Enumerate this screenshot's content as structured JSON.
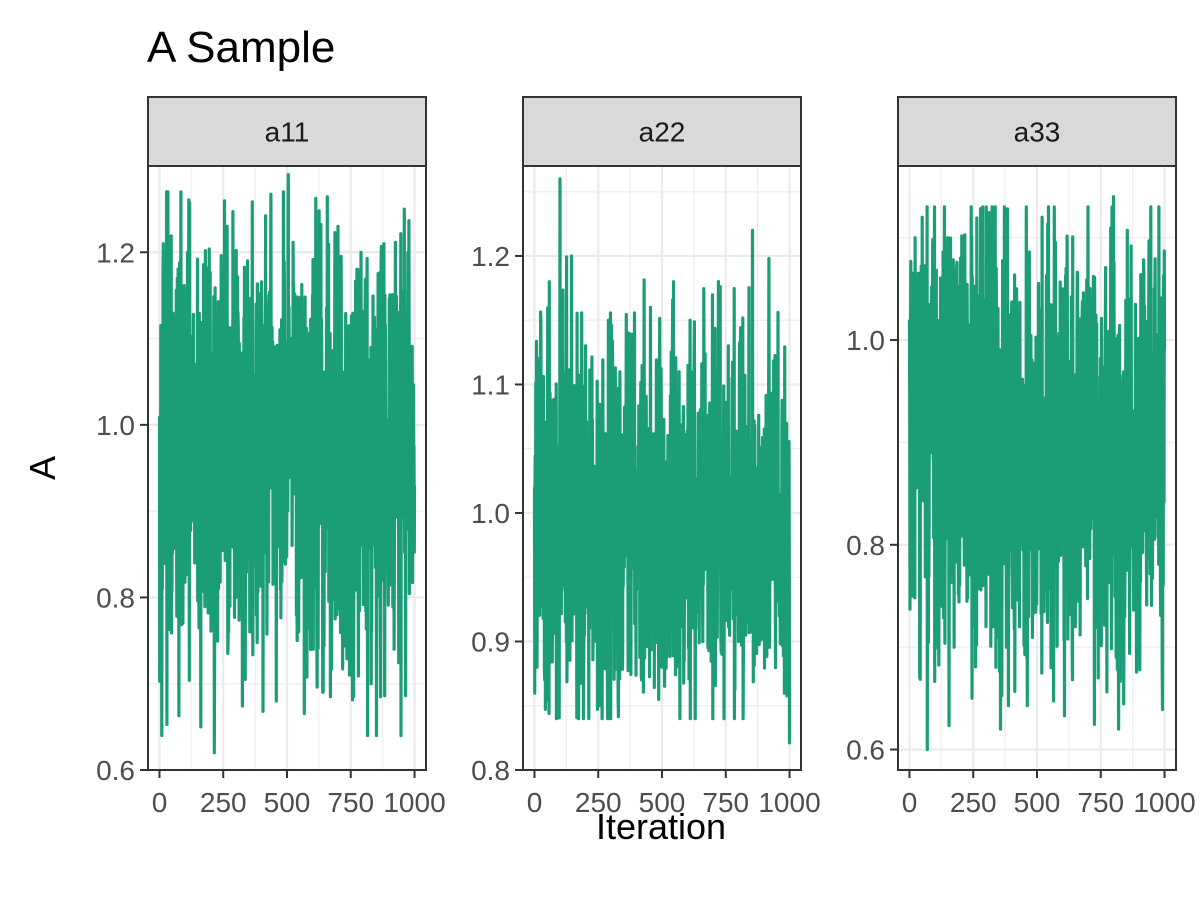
{
  "chart_data": {
    "type": "line",
    "title": "A Sample",
    "xlabel": "Iteration",
    "ylabel": "A",
    "grid": true,
    "legend": "none",
    "line_color": "#1b9e77",
    "strip_fill": "#d9d9d9",
    "panels": [
      {
        "label": "a11",
        "xlim": [
          0,
          1000
        ],
        "x_ticks": [
          "0",
          "250",
          "500",
          "750",
          "1000"
        ],
        "ylim": [
          0.6,
          1.3
        ],
        "y_ticks": [
          "0.6",
          "0.8",
          "1.0",
          "1.2"
        ],
        "summary": {
          "center": 0.97,
          "typical_low": 0.85,
          "typical_high": 1.09,
          "min": 0.62,
          "max": 1.29
        },
        "series": [
          {
            "x": [
              0,
              8,
              15,
              23,
              38,
              52,
              70,
              92,
              110,
              138,
              162,
              190,
              215,
              240,
              265,
              300,
              345,
              380,
              430,
              458,
              505,
              540,
              600,
              640,
              700,
              745,
              790,
              830,
              880,
              920,
              960,
              1000
            ],
            "y": [
              1.01,
              0.88,
              1.21,
              0.86,
              1.09,
              0.92,
              1.17,
              0.77,
              1.2,
              0.84,
              0.65,
              1.14,
              0.62,
              1.13,
              1.23,
              0.8,
              1.19,
              0.78,
              1.15,
              0.68,
              1.29,
              0.75,
              1.15,
              0.69,
              1.23,
              0.71,
              1.2,
              0.7,
              1.21,
              0.74,
              1.25,
              0.93
            ]
          }
        ]
      },
      {
        "label": "a22",
        "xlim": [
          0,
          1000
        ],
        "x_ticks": [
          "0",
          "250",
          "500",
          "750",
          "1000"
        ],
        "ylim": [
          0.8,
          1.27
        ],
        "y_ticks": [
          "0.8",
          "0.9",
          "1.0",
          "1.1",
          "1.2"
        ],
        "summary": {
          "center": 1.0,
          "typical_low": 0.93,
          "typical_high": 1.07,
          "min": 0.82,
          "max": 1.26
        },
        "series": [
          {
            "x": [
              0,
              10,
              25,
              40,
              58,
              75,
              100,
              125,
              145,
              175,
              200,
              230,
              255,
              290,
              330,
              370,
              420,
              455,
              500,
              545,
              570,
              610,
              660,
              700,
              735,
              760,
              800,
              855,
              880,
              920,
              960,
              1000
            ],
            "y": [
              1.02,
              0.88,
              1.15,
              0.87,
              1.18,
              0.93,
              1.26,
              0.9,
              1.2,
              0.93,
              1.13,
              0.9,
              0.85,
              1.15,
              0.9,
              1.14,
              0.87,
              1.16,
              0.88,
              1.18,
              0.84,
              1.15,
              0.9,
              1.14,
              0.89,
              1.13,
              0.9,
              1.22,
              0.9,
              1.12,
              0.92,
              0.82
            ]
          }
        ]
      },
      {
        "label": "a33",
        "xlim": [
          0,
          1000
        ],
        "x_ticks": [
          "0",
          "250",
          "500",
          "750",
          "1000"
        ],
        "ylim": [
          0.58,
          1.17
        ],
        "y_ticks": [
          "0.6",
          "0.8",
          "1.0"
        ],
        "summary": {
          "center": 0.9,
          "typical_low": 0.79,
          "typical_high": 1.0,
          "min": 0.6,
          "max": 1.15
        },
        "series": [
          {
            "x": [
              0,
              8,
              22,
              40,
              50,
              70,
              98,
              125,
              150,
              175,
              200,
              245,
              265,
              300,
              340,
              380,
              420,
              460,
              520,
              555,
              600,
              650,
              690,
              740,
              800,
              820,
              860,
              900,
              960,
              1000
            ],
            "y": [
              1.02,
              0.75,
              1.1,
              0.67,
              1.12,
              0.6,
              1.13,
              0.74,
              1.1,
              0.7,
              1.08,
              0.65,
              1.0,
              0.72,
              1.07,
              0.7,
              1.05,
              0.69,
              1.12,
              0.68,
              1.05,
              0.72,
              1.0,
              0.67,
              1.14,
              0.62,
              1.04,
              0.69,
              1.05,
              0.99
            ]
          }
        ]
      }
    ]
  }
}
